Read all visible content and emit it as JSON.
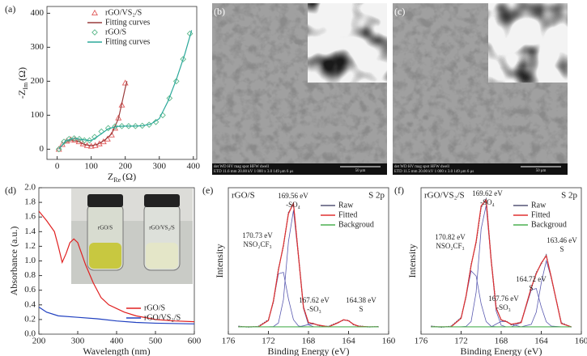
{
  "chart_data": [
    {
      "type": "scatter",
      "panel": "(a)",
      "xlabel": {
        "base": "Z",
        "sub": "Re",
        "unit": "(Ω)"
      },
      "ylabel": {
        "base": "-Z",
        "sub": "Im",
        "unit": "(Ω)"
      },
      "xlim": [
        -30,
        410
      ],
      "ylim": [
        -30,
        420
      ],
      "xticks": [
        0,
        100,
        200,
        300,
        400
      ],
      "yticks": [
        0,
        100,
        200,
        300,
        400
      ],
      "legend": "upper left",
      "series": [
        {
          "name": "rGO/VS₂/S",
          "color": "#e05a5a",
          "marker": "triangle",
          "x": [
            5,
            15,
            28,
            40,
            52,
            64,
            76,
            88,
            100,
            112,
            124,
            136,
            148,
            160,
            170,
            180,
            190,
            200
          ],
          "values": [
            0,
            14,
            24,
            28,
            27,
            22,
            16,
            11,
            9,
            11,
            16,
            22,
            30,
            42,
            62,
            92,
            130,
            195
          ]
        },
        {
          "name": "Fitting curves",
          "color": "#9a3b3b",
          "marker": null,
          "x": [
            5,
            20,
            40,
            60,
            80,
            100,
            120,
            140,
            160,
            180,
            200,
            205
          ],
          "values": [
            0,
            18,
            27,
            24,
            14,
            10,
            15,
            27,
            45,
            90,
            180,
            200
          ]
        },
        {
          "name": "rGO/S",
          "color": "#5cb88a",
          "marker": "diamond",
          "x": [
            5,
            20,
            35,
            50,
            65,
            80,
            95,
            110,
            130,
            150,
            170,
            190,
            210,
            230,
            250,
            270,
            290,
            310,
            330,
            350,
            370,
            390
          ],
          "values": [
            0,
            22,
            30,
            32,
            30,
            26,
            26,
            36,
            52,
            62,
            67,
            68,
            68,
            68,
            69,
            72,
            80,
            100,
            150,
            200,
            265,
            340
          ]
        },
        {
          "name": "Fitting curves",
          "color": "#2ba89a",
          "marker": null,
          "x": [
            5,
            25,
            50,
            75,
            100,
            125,
            150,
            175,
            200,
            225,
            250,
            275,
            300,
            325,
            350,
            375,
            395
          ],
          "values": [
            0,
            25,
            32,
            28,
            25,
            42,
            60,
            67,
            68,
            68,
            69,
            74,
            90,
            140,
            205,
            280,
            350
          ]
        }
      ]
    },
    {
      "type": "line",
      "panel": "(d)",
      "xlabel": "Wavelength (nm)",
      "ylabel": "Absorbance (a.u.)",
      "xlim": [
        200,
        600
      ],
      "ylim": [
        0,
        2.0
      ],
      "xticks": [
        200,
        300,
        400,
        500,
        600
      ],
      "yticks": [
        {
          "value": 0,
          "label": "0.0"
        },
        {
          "value": 0.2,
          "label": "0.2"
        },
        {
          "value": 0.4,
          "label": "0.4"
        },
        {
          "value": 0.6,
          "label": "0.6"
        },
        {
          "value": 0.8,
          "label": "0.8"
        },
        {
          "value": 1.0,
          "label": "1.0"
        },
        {
          "value": 1.2,
          "label": "1.2"
        },
        {
          "value": 1.4,
          "label": "1.4"
        },
        {
          "value": 1.6,
          "label": "1.6"
        },
        {
          "value": 1.8,
          "label": "1.8"
        },
        {
          "value": 2.0,
          "label": "2.0"
        }
      ],
      "legend": "lower right",
      "inset": [
        "rGO/S",
        "rGO/VS₂/S"
      ],
      "series": [
        {
          "name": "rGO/S",
          "color": "#e02020",
          "x": [
            200,
            220,
            240,
            250,
            260,
            270,
            280,
            290,
            300,
            320,
            340,
            360,
            380,
            400,
            420,
            450,
            500,
            550,
            600
          ],
          "values": [
            1.68,
            1.55,
            1.4,
            1.2,
            0.98,
            1.1,
            1.25,
            1.3,
            1.25,
            0.95,
            0.7,
            0.5,
            0.4,
            0.35,
            0.3,
            0.25,
            0.2,
            0.18,
            0.17
          ]
        },
        {
          "name": "rGO/VS₂/S",
          "color": "#2040c0",
          "x": [
            200,
            220,
            250,
            300,
            350,
            400,
            450,
            500,
            600
          ],
          "values": [
            0.37,
            0.3,
            0.25,
            0.23,
            0.21,
            0.18,
            0.16,
            0.15,
            0.14
          ]
        }
      ]
    },
    {
      "type": "line",
      "panel": "(e)",
      "sample": "rGO/S",
      "region": "S 2p",
      "xlabel": "Binding Energy (eV)",
      "ylabel": "Intensity",
      "xlim": [
        176,
        160
      ],
      "ylim": [
        0,
        100
      ],
      "xticks": [
        176,
        172,
        168,
        164,
        160
      ],
      "legend": "upper right",
      "x": [
        175,
        174,
        173,
        172,
        171.5,
        171,
        170.5,
        170,
        169.5,
        169,
        168.5,
        168,
        167.5,
        167,
        166,
        165,
        164.5,
        164,
        163.5,
        163,
        162,
        161
      ],
      "annotations": [
        {
          "lines": [
            "169.56 eV",
            "-SO₄"
          ]
        },
        {
          "lines": [
            "170.73 eV",
            "NSO₂CF₃"
          ]
        },
        {
          "lines": [
            "167.62 eV",
            "-SO₃"
          ]
        },
        {
          "lines": [
            "164.38 eV",
            "S"
          ]
        }
      ],
      "series": [
        {
          "color": "#5a5ab0",
          "values": [
            5,
            5,
            5,
            9.3,
            22.6,
            41.2,
            42.2,
            24.1,
            9.9,
            5.6,
            5,
            5,
            5,
            5,
            5,
            5,
            5,
            5,
            5,
            5,
            5,
            5
          ]
        },
        {
          "color": "#5a5ab0",
          "values": [
            5,
            5,
            5,
            5,
            5.2,
            7.6,
            23.6,
            63.1,
            84.5,
            52.7,
            17.5,
            6.4,
            5.1,
            5,
            5,
            5,
            5,
            5,
            5,
            5,
            5,
            5
          ]
        },
        {
          "color": "#5a5ab0",
          "values": [
            5,
            5,
            5,
            5,
            5,
            5,
            5,
            5,
            5,
            5,
            5.7,
            6.6,
            7,
            6.2,
            5,
            5,
            5,
            5,
            5,
            5,
            5,
            5
          ]
        },
        {
          "color": "#5a5ab0",
          "values": [
            5,
            5,
            5,
            5,
            5,
            5,
            5,
            5,
            5,
            5,
            5,
            5,
            5,
            5,
            5,
            7.9,
            9.9,
            9.1,
            6.7,
            5.4,
            5,
            5
          ]
        },
        {
          "name": "Raw",
          "color": "#555577",
          "values": [
            5.4,
            4.8,
            5.3,
            9.8,
            22.0,
            44.5,
            60.0,
            83.0,
            88.6,
            54.0,
            18.8,
            7.6,
            7.4,
            5.8,
            5.3,
            8.2,
            9.6,
            9.4,
            6.4,
            5.6,
            4.9,
            5.2
          ]
        },
        {
          "name": "Fitted",
          "color": "#e03030",
          "values": [
            5,
            5,
            5,
            9.3,
            22.8,
            43.8,
            60.8,
            82.2,
            89.4,
            53.3,
            18.2,
            8.0,
            7.1,
            6.2,
            5,
            7.9,
            9.9,
            9.1,
            6.7,
            5.4,
            5,
            5
          ]
        },
        {
          "name": "Backgroud",
          "color": "#4caf50",
          "values": [
            5,
            5,
            5,
            5,
            5,
            5,
            5,
            5,
            5,
            5,
            5,
            5,
            5,
            5,
            5,
            5,
            5,
            5,
            5,
            5,
            5,
            5
          ]
        }
      ]
    },
    {
      "type": "line",
      "panel": "(f)",
      "sample": "rGO/VS₂/S",
      "region": "S 2p",
      "xlabel": "Binding Energy (eV)",
      "ylabel": "Intensity",
      "xlim": [
        176,
        160
      ],
      "ylim": [
        0,
        100
      ],
      "xticks": [
        176,
        172,
        168,
        164,
        160
      ],
      "legend": "upper right",
      "x": [
        175,
        174,
        173,
        172,
        171.5,
        171,
        170.5,
        170,
        169.5,
        169,
        168.5,
        168,
        167.5,
        167,
        166,
        165,
        164.5,
        164,
        163.5,
        163,
        162,
        161
      ],
      "annotations": [
        {
          "lines": [
            "169.62 eV",
            "-SO₄"
          ]
        },
        {
          "lines": [
            "170.82 eV",
            "NSO₂CF₃"
          ]
        },
        {
          "lines": [
            "167.76 eV",
            "-SO₃"
          ]
        },
        {
          "lines": [
            "164.72 eV",
            "S"
          ]
        },
        {
          "lines": [
            "163.46 eV",
            "S"
          ]
        }
      ],
      "series": [
        {
          "color": "#5a5ab0",
          "values": [
            5,
            5,
            5,
            10.8,
            26,
            43.2,
            39.7,
            20.7,
            8.6,
            5.4,
            5,
            5,
            5,
            5,
            5,
            5,
            5,
            5,
            5,
            5,
            5,
            5
          ]
        },
        {
          "color": "#5a5ab0",
          "values": [
            5,
            5,
            5,
            5,
            5.3,
            8.6,
            28.6,
            71.9,
            88,
            50,
            15.7,
            6.1,
            5,
            5,
            5,
            5,
            5,
            5,
            5,
            5,
            5,
            5
          ]
        },
        {
          "color": "#5a5ab0",
          "values": [
            5,
            5,
            5,
            5,
            5,
            5,
            5,
            5,
            5,
            5,
            6.9,
            8.7,
            8.6,
            6.8,
            5,
            5,
            5,
            5,
            5,
            5,
            5,
            5
          ]
        },
        {
          "color": "#5a5ab0",
          "values": [
            5,
            5,
            5,
            5,
            5,
            5,
            5,
            5,
            5,
            5,
            5,
            5,
            5,
            5,
            7.9,
            30.1,
            31.2,
            18.6,
            8.5,
            5.5,
            5,
            5
          ]
        },
        {
          "color": "#5a5ab0",
          "values": [
            5,
            5,
            5,
            5,
            5,
            5,
            5,
            5,
            5,
            5,
            5,
            5,
            5,
            5,
            5,
            6.7,
            15,
            35,
            50,
            38.5,
            7.3,
            5
          ]
        },
        {
          "name": "Raw",
          "color": "#555577",
          "values": [
            5.5,
            4.7,
            5.4,
            11.3,
            25.6,
            47.5,
            62.4,
            86.5,
            92.4,
            51.2,
            18.3,
            9.3,
            9.0,
            6.4,
            8.3,
            31.0,
            42.1,
            47.9,
            54.2,
            38.4,
            7.8,
            4.8
          ]
        },
        {
          "name": "Fitted",
          "color": "#e03030",
          "values": [
            5,
            5,
            5,
            10.8,
            26.3,
            46.8,
            63.3,
            87.6,
            91.6,
            50.4,
            17.6,
            9.8,
            8.6,
            6.8,
            7.9,
            31.8,
            41.2,
            48.6,
            53.5,
            39,
            7.3,
            5
          ]
        },
        {
          "name": "Backgroud",
          "color": "#4caf50",
          "values": [
            5,
            5,
            5,
            5,
            5,
            5,
            5,
            5,
            5,
            5,
            5,
            5,
            5,
            5,
            5,
            5,
            5,
            5,
            5,
            5,
            5,
            5
          ]
        }
      ]
    }
  ],
  "images": [
    {
      "panel": "(b)",
      "info": [
        "det  WD  HV  mag  spot  HFW  dwell",
        "ETD 11.6 mm 20.00 kV 1 000 x 3.0 149 μm 6 μs"
      ],
      "scale_bar": "50 μm"
    },
    {
      "panel": "(c)",
      "info": [
        "det  WD  HV  mag  spot  HFW  dwell",
        "ETD 11.5 mm 20.00 kV 1 000 x 3.0 149 μm 6 μs"
      ],
      "scale_bar": "50 μm"
    }
  ]
}
